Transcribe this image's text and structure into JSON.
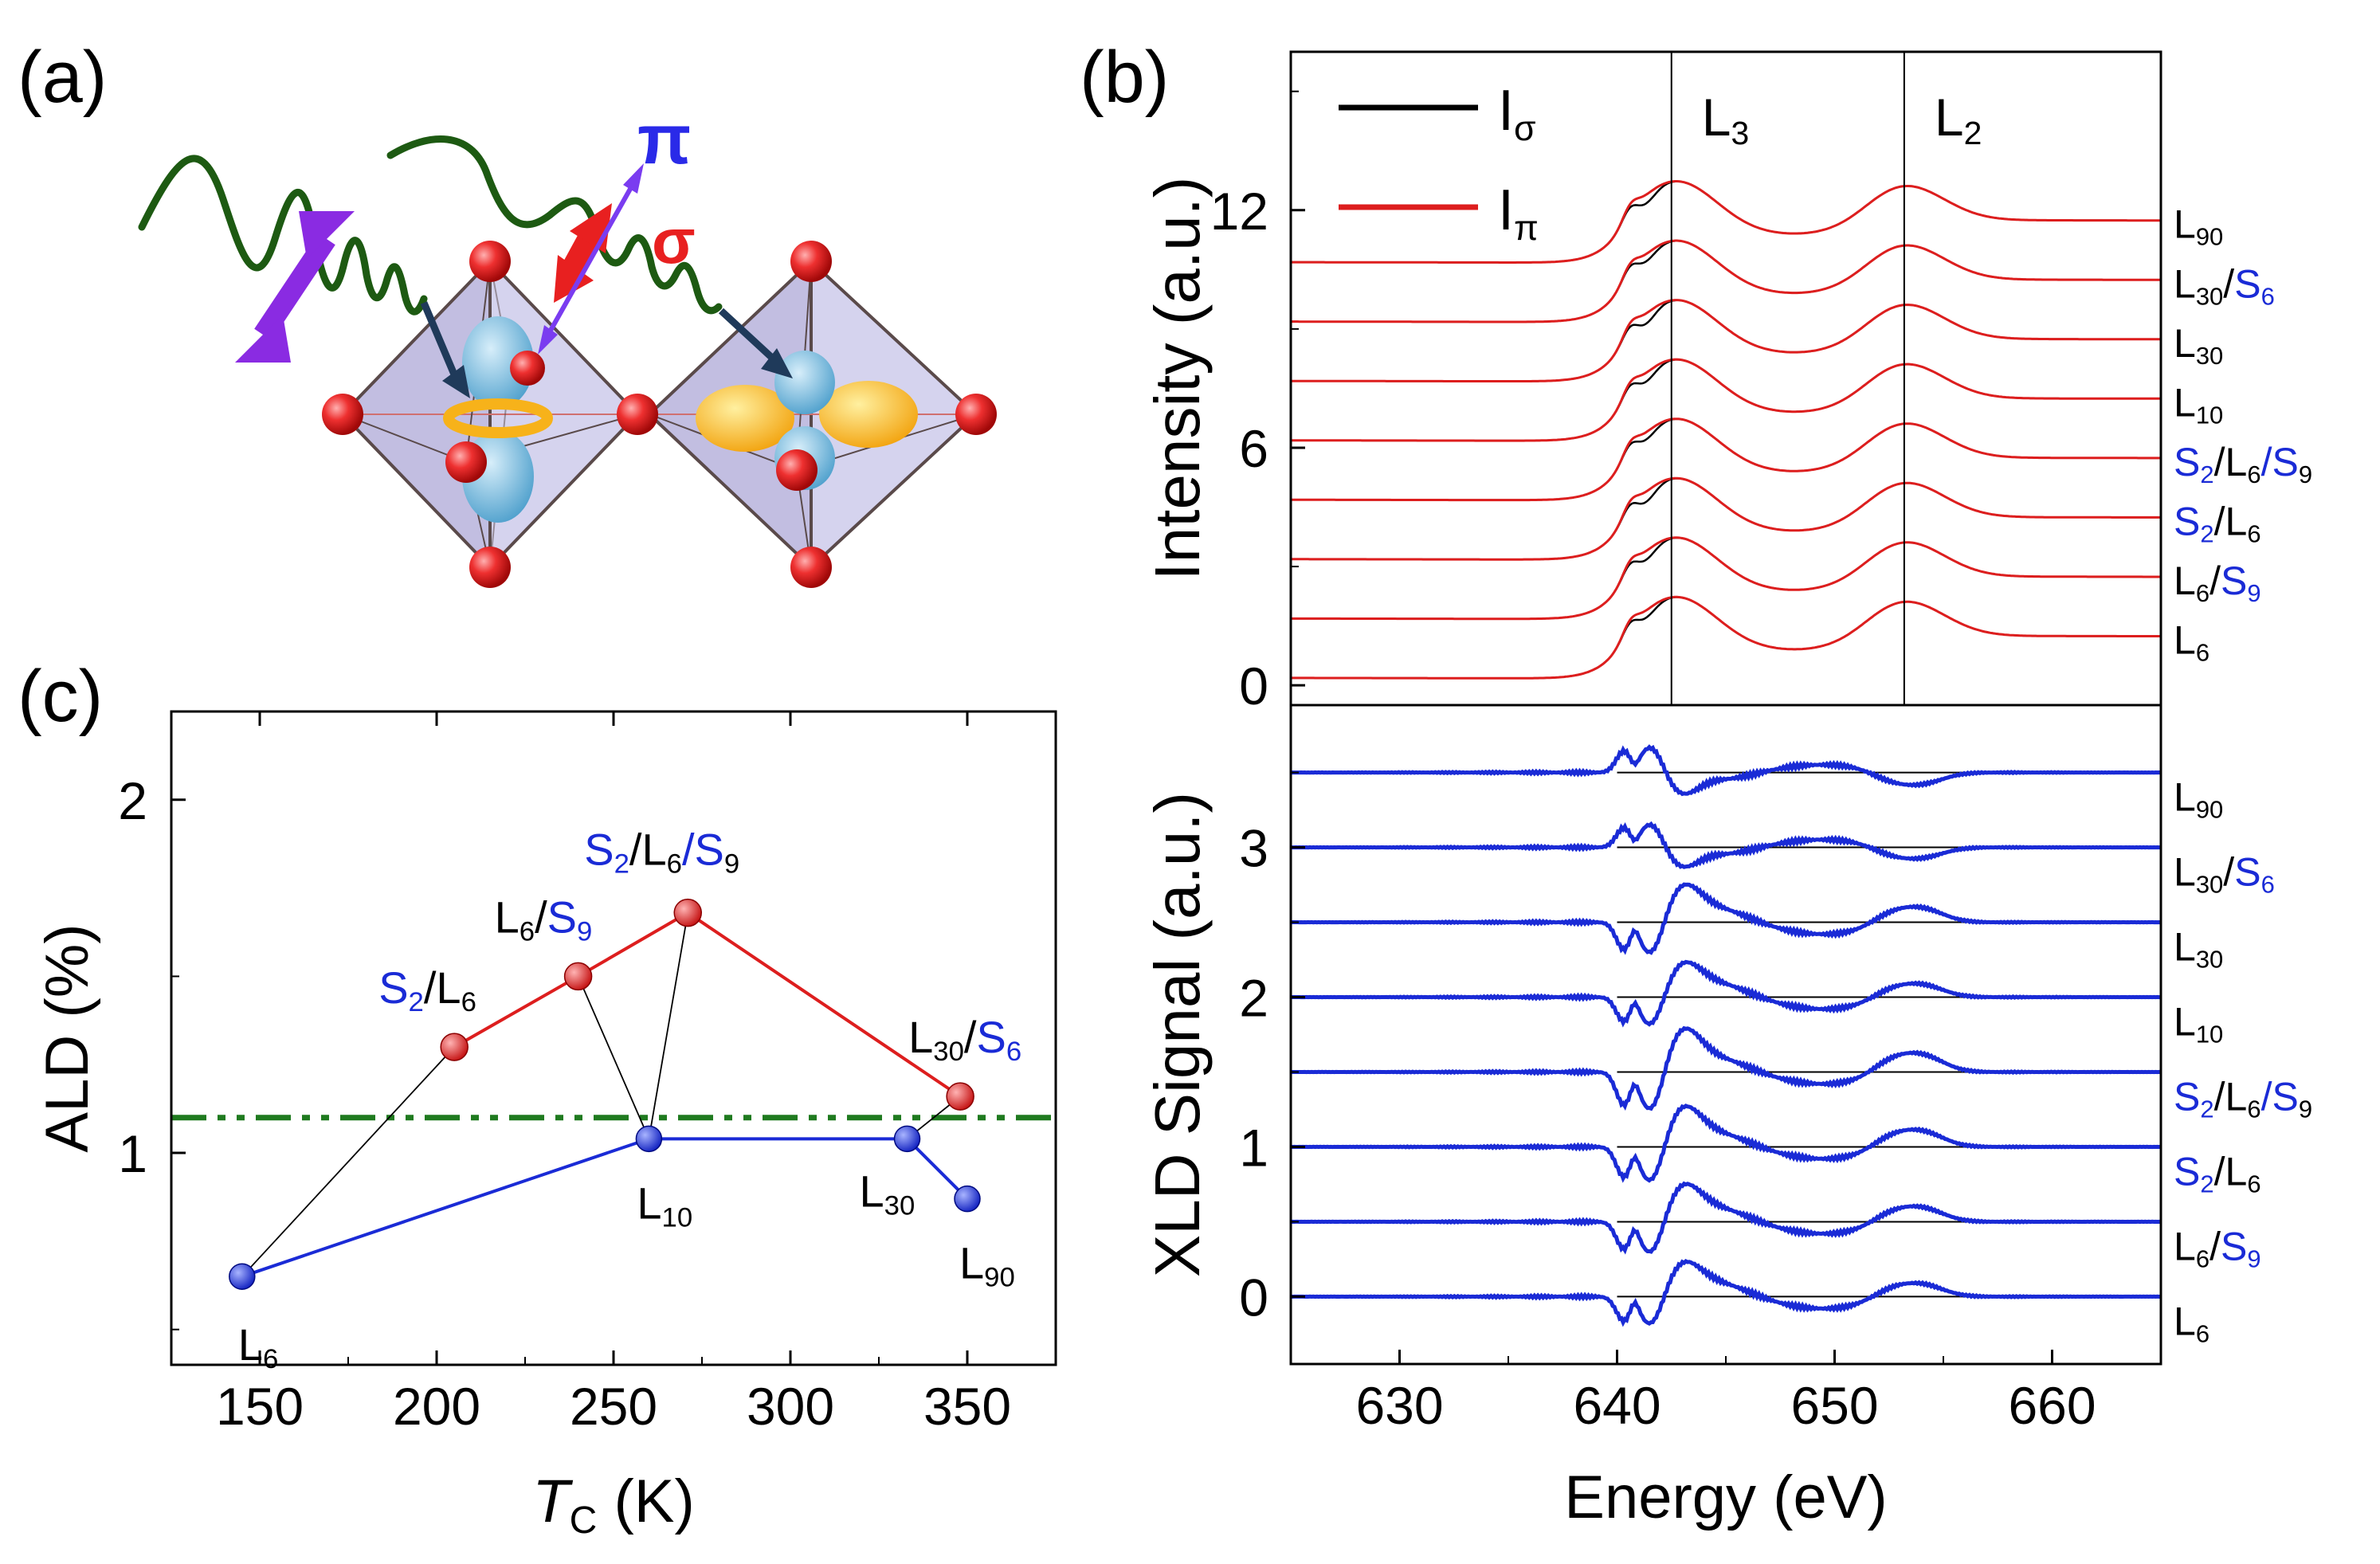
{
  "panels": {
    "a": "(a)",
    "b": "(b)",
    "c": "(c)"
  },
  "colors": {
    "red": "#dd1e1e",
    "blue": "#1a2bd6",
    "green": "#1f7a1f",
    "black": "#000000"
  },
  "pol_labels": {
    "pi": "π",
    "sigma": "σ"
  },
  "chart_data": [
    {
      "id": "c",
      "type": "scatter",
      "xlabel": "T_C (K)",
      "ylabel": "ALD (%)",
      "xlim": [
        125,
        375
      ],
      "ylim": [
        0.4,
        2.25
      ],
      "xticks": [
        150,
        200,
        250,
        300,
        350
      ],
      "yticks": [
        1,
        2
      ],
      "threshold": 1.1,
      "series": [
        {
          "name": "red",
          "x": [
            205,
            240,
            271,
            348
          ],
          "y": [
            1.3,
            1.5,
            1.68,
            1.16
          ],
          "labels": [
            [
              "S",
              "2",
              "/",
              "L",
              "6"
            ],
            [
              "L",
              "6",
              "/",
              "S",
              "9"
            ],
            [
              "S",
              "2",
              "/",
              "L",
              "6",
              "/",
              "S",
              "9"
            ],
            [
              "L",
              "30",
              "/",
              "S",
              "6"
            ]
          ]
        },
        {
          "name": "blue",
          "x": [
            145,
            260,
            333,
            350
          ],
          "y": [
            0.65,
            1.04,
            1.04,
            0.87
          ],
          "labels": [
            [
              "L",
              "6"
            ],
            [
              "L",
              "10"
            ],
            [
              "L",
              "30"
            ],
            [
              "L",
              "90"
            ]
          ]
        }
      ],
      "links": [
        [
          0,
          0
        ],
        [
          1,
          1
        ],
        [
          2,
          1
        ],
        [
          3,
          2
        ]
      ]
    },
    {
      "id": "b-top",
      "type": "line",
      "ylabel": "Intensity (a.u.)",
      "xlim": [
        625,
        665
      ],
      "ylim": [
        -0.5,
        16
      ],
      "yticks": [
        0,
        6,
        12
      ],
      "edges": [
        {
          "label": [
            "L",
            "3"
          ],
          "x": 642.5
        },
        {
          "label": [
            "L",
            "2"
          ],
          "x": 653.2
        }
      ],
      "legend": [
        {
          "label": [
            "I",
            "σ"
          ],
          "color": "black"
        },
        {
          "label": [
            "I",
            "π"
          ],
          "color": "red"
        }
      ],
      "offsets": [
        0,
        1.5,
        3,
        4.5,
        6,
        7.5,
        9,
        10.5
      ],
      "samples": [
        [
          "L",
          "6"
        ],
        [
          "L",
          "6",
          "/",
          "S",
          "9"
        ],
        [
          "S",
          "2",
          "/",
          "L",
          "6"
        ],
        [
          "S",
          "2",
          "/",
          "L",
          "6",
          "/",
          "S",
          "9"
        ],
        [
          "L",
          "10"
        ],
        [
          "L",
          "30"
        ],
        [
          "L",
          "30",
          "/",
          "S",
          "6"
        ],
        [
          "L",
          "90"
        ]
      ],
      "blue_tokens": [
        [],
        [
          3,
          4
        ],
        [
          0,
          1
        ],
        [
          0,
          1,
          5,
          6
        ],
        [],
        [],
        [
          3,
          4
        ],
        []
      ]
    },
    {
      "id": "b-bottom",
      "type": "line",
      "xlabel": "Energy (eV)",
      "ylabel": "XLD Signal (a.u.)",
      "xlim": [
        625,
        665
      ],
      "ylim": [
        -0.45,
        3.95
      ],
      "xticks": [
        630,
        640,
        650,
        660
      ],
      "yticks": [
        0,
        1,
        2,
        3
      ],
      "offsets": [
        0,
        0.5,
        1,
        1.5,
        2,
        2.5,
        3,
        3.5
      ],
      "samples": [
        [
          "L",
          "6"
        ],
        [
          "L",
          "6",
          "/",
          "S",
          "9"
        ],
        [
          "S",
          "2",
          "/",
          "L",
          "6"
        ],
        [
          "S",
          "2",
          "/",
          "L",
          "6",
          "/",
          "S",
          "9"
        ],
        [
          "L",
          "10"
        ],
        [
          "L",
          "30"
        ],
        [
          "L",
          "30",
          "/",
          "S",
          "6"
        ],
        [
          "L",
          "90"
        ]
      ],
      "blue_tokens": [
        [],
        [
          3,
          4
        ],
        [
          0,
          1
        ],
        [
          0,
          1,
          5,
          6
        ],
        [],
        [],
        [
          3,
          4
        ],
        []
      ]
    }
  ]
}
